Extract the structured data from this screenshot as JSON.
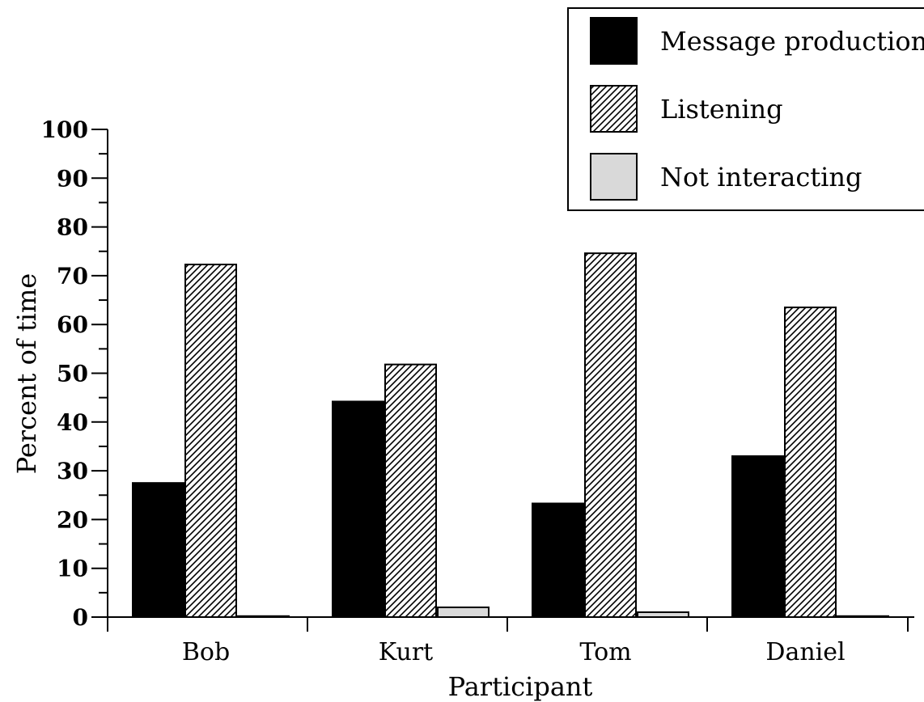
{
  "chart_data": {
    "type": "bar",
    "title": "",
    "xlabel": "Participant",
    "ylabel": "Percent of time",
    "ylim": [
      0,
      100
    ],
    "yticks": [
      0,
      10,
      20,
      30,
      40,
      50,
      60,
      70,
      80,
      90,
      100
    ],
    "categories": [
      "Bob",
      "Kurt",
      "Tom",
      "Daniel"
    ],
    "series": [
      {
        "name": "Message production",
        "values": [
          27.5,
          44.2,
          23.3,
          33.0
        ],
        "fill": "#000000"
      },
      {
        "name": "Listening",
        "values": [
          72.3,
          51.8,
          74.6,
          63.5
        ],
        "fill": "hatch"
      },
      {
        "name": "Not interacting",
        "values": [
          0.2,
          2.0,
          1.0,
          0.2
        ],
        "fill": "#d9d9d9"
      }
    ],
    "legend_position": "top-right",
    "grid": false
  }
}
